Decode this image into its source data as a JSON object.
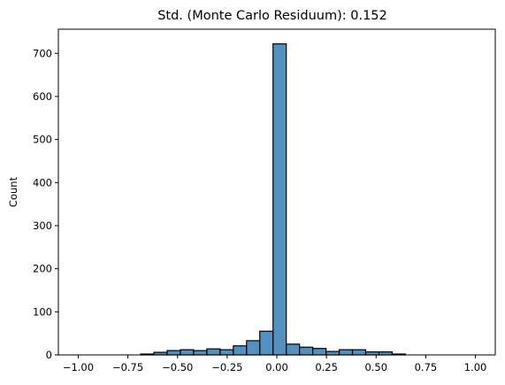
{
  "chart_data": {
    "type": "bar",
    "title": "Std. (Monte Carlo Residuum): 0.152",
    "xlabel": "",
    "ylabel": "Count",
    "xlim": [
      -1.1,
      1.1
    ],
    "ylim": [
      0,
      756
    ],
    "grid": false,
    "bar_color": "#5290c0",
    "xticks": [
      -1.0,
      -0.75,
      -0.5,
      -0.25,
      0.0,
      0.25,
      0.5,
      0.75,
      1.0
    ],
    "xtick_labels": [
      "−1.00",
      "−0.75",
      "−0.50",
      "−0.25",
      "0.00",
      "0.25",
      "0.50",
      "0.75",
      "1.00"
    ],
    "yticks": [
      0,
      100,
      200,
      300,
      400,
      500,
      600,
      700
    ],
    "ytick_labels": [
      "0",
      "100",
      "200",
      "300",
      "400",
      "500",
      "600",
      "700"
    ],
    "bins": {
      "edges": [
        -0.6857,
        -0.619,
        -0.5524,
        -0.4857,
        -0.419,
        -0.3524,
        -0.2857,
        -0.219,
        -0.1524,
        -0.0857,
        -0.019,
        0.0476,
        0.1143,
        0.181,
        0.2476,
        0.3143,
        0.381,
        0.4476,
        0.5143,
        0.581,
        0.6476
      ],
      "counts": [
        2,
        6,
        10,
        12,
        10,
        14,
        12,
        21,
        33,
        55,
        722,
        25,
        18,
        15,
        8,
        12,
        12,
        7,
        7,
        2
      ]
    }
  }
}
